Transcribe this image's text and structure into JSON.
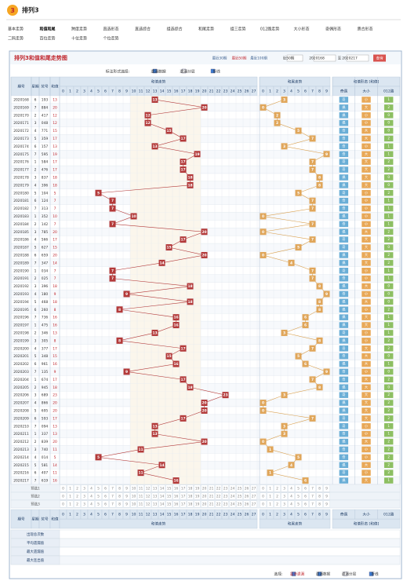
{
  "header": {
    "logo": "3",
    "title": "排列3"
  },
  "nav": [
    "基本走势",
    "和值和尾",
    "跨度走势",
    "直选形态",
    "直选综合",
    "组选综合",
    "和尾走势",
    "组三走势",
    "012路走势",
    "大小形态",
    "奇偶形态",
    "质合形态",
    "二码走势",
    "百位走势",
    "十位走势",
    "个位走势"
  ],
  "panel": {
    "title": "排列3和值和尾走势图",
    "periods": [
      "最近30期",
      "最近50期",
      "最近100期"
    ],
    "select": "近50期",
    "from": "2020168",
    "to": "至",
    "end": "2020217",
    "query": "查询"
  },
  "options_top": {
    "label": "标注形式选择:",
    "items": [
      "遗漏数据",
      "遗漏分层",
      "折线"
    ]
  },
  "table": {
    "headers": {
      "issue": "期号",
      "week": "星期",
      "number": "奖号",
      "sum": "和值",
      "sum_group": "和值走势",
      "tail_group": "和尾走势",
      "form_group": "和值形态 [和值]",
      "parity": "奇偶",
      "size": "大小",
      "route": "012路"
    },
    "sum_columns": [
      0,
      1,
      2,
      3,
      4,
      5,
      6,
      7,
      8,
      9,
      10,
      11,
      12,
      13,
      14,
      15,
      16,
      17,
      18,
      19,
      20,
      21,
      22,
      23,
      24,
      25,
      26,
      27
    ],
    "tail_columns": [
      0,
      1,
      2,
      3,
      4,
      5,
      6,
      7,
      8,
      9
    ],
    "rows": [
      [
        "2020168",
        6,
        "193",
        13,
        3,
        "奇",
        "小",
        1
      ],
      [
        "2020169",
        7,
        "884",
        20,
        0,
        "偶",
        "大",
        2
      ],
      [
        "2020170",
        2,
        "417",
        12,
        2,
        "偶",
        "小",
        0
      ],
      [
        "2020171",
        3,
        "048",
        12,
        2,
        "偶",
        "小",
        0
      ],
      [
        "2020172",
        4,
        "771",
        15,
        5,
        "奇",
        "大",
        0
      ],
      [
        "2020173",
        5,
        "359",
        17,
        7,
        "奇",
        "大",
        2
      ],
      [
        "2020174",
        6,
        "157",
        13,
        3,
        "奇",
        "小",
        1
      ],
      [
        "2020175",
        7,
        "595",
        19,
        9,
        "奇",
        "大",
        1
      ],
      [
        "2020176",
        1,
        "584",
        17,
        7,
        "奇",
        "大",
        2
      ],
      [
        "2020177",
        2,
        "476",
        17,
        7,
        "奇",
        "大",
        2
      ],
      [
        "2020178",
        3,
        "837",
        18,
        8,
        "偶",
        "大",
        0
      ],
      [
        "2020179",
        4,
        "396",
        18,
        8,
        "偶",
        "大",
        0
      ],
      [
        "2020180",
        5,
        "104",
        5,
        5,
        "奇",
        "小",
        2
      ],
      [
        "2020181",
        6,
        "124",
        7,
        7,
        "奇",
        "小",
        1
      ],
      [
        "2020182",
        7,
        "313",
        7,
        7,
        "奇",
        "小",
        1
      ],
      [
        "2020183",
        1,
        "352",
        10,
        0,
        "偶",
        "小",
        1
      ],
      [
        "2020184",
        2,
        "142",
        7,
        7,
        "奇",
        "小",
        1
      ],
      [
        "2020185",
        3,
        "785",
        20,
        0,
        "偶",
        "大",
        2
      ],
      [
        "2020186",
        4,
        "566",
        17,
        7,
        "奇",
        "大",
        2
      ],
      [
        "2020187",
        5,
        "627",
        15,
        5,
        "奇",
        "大",
        0
      ],
      [
        "2020188",
        6,
        "659",
        20,
        0,
        "偶",
        "大",
        2
      ],
      [
        "2020189",
        7,
        "347",
        14,
        4,
        "偶",
        "大",
        2
      ],
      [
        "2020190",
        1,
        "034",
        7,
        7,
        "奇",
        "小",
        1
      ],
      [
        "2020191",
        2,
        "025",
        7,
        7,
        "奇",
        "小",
        1
      ],
      [
        "2020192",
        3,
        "396",
        18,
        8,
        "偶",
        "大",
        0
      ],
      [
        "2020193",
        4,
        "180",
        9,
        9,
        "奇",
        "小",
        0
      ],
      [
        "2020194",
        5,
        "468",
        18,
        8,
        "偶",
        "大",
        0
      ],
      [
        "2020195",
        6,
        "260",
        8,
        8,
        "偶",
        "小",
        2
      ],
      [
        "2020196",
        7,
        "736",
        16,
        6,
        "偶",
        "大",
        1
      ],
      [
        "2020197",
        1,
        "475",
        16,
        6,
        "偶",
        "大",
        1
      ],
      [
        "2020198",
        2,
        "346",
        13,
        3,
        "奇",
        "小",
        1
      ],
      [
        "2020199",
        3,
        "305",
        8,
        8,
        "偶",
        "小",
        2
      ],
      [
        "2020200",
        4,
        "377",
        17,
        7,
        "奇",
        "大",
        2
      ],
      [
        "2020201",
        5,
        "348",
        15,
        5,
        "奇",
        "大",
        0
      ],
      [
        "2020202",
        6,
        "961",
        16,
        6,
        "偶",
        "大",
        1
      ],
      [
        "2020203",
        7,
        "135",
        9,
        9,
        "奇",
        "小",
        0
      ],
      [
        "2020204",
        1,
        "674",
        17,
        7,
        "奇",
        "大",
        2
      ],
      [
        "2020205",
        2,
        "945",
        18,
        8,
        "偶",
        "大",
        0
      ],
      [
        "2020206",
        3,
        "689",
        23,
        3,
        "奇",
        "大",
        2
      ],
      [
        "2020207",
        4,
        "866",
        20,
        0,
        "偶",
        "大",
        2
      ],
      [
        "2020208",
        5,
        "695",
        20,
        0,
        "偶",
        "大",
        2
      ],
      [
        "2020209",
        6,
        "593",
        17,
        7,
        "奇",
        "大",
        2
      ],
      [
        "2020210",
        7,
        "094",
        13,
        3,
        "奇",
        "小",
        1
      ],
      [
        "2020211",
        1,
        "337",
        13,
        3,
        "奇",
        "小",
        1
      ],
      [
        "2020212",
        2,
        "839",
        20,
        0,
        "偶",
        "大",
        2
      ],
      [
        "2020213",
        3,
        "740",
        11,
        1,
        "奇",
        "小",
        2
      ],
      [
        "2020214",
        4,
        "014",
        5,
        5,
        "奇",
        "小",
        2
      ],
      [
        "2020215",
        5,
        "581",
        14,
        4,
        "偶",
        "大",
        2
      ],
      [
        "2020216",
        6,
        "407",
        11,
        1,
        "奇",
        "小",
        2
      ],
      [
        "2020217",
        7,
        "619",
        16,
        6,
        "偶",
        "大",
        1
      ]
    ],
    "preselect": [
      "预选1",
      "预选2",
      "预选3"
    ],
    "stats": [
      "出现总次数",
      "平均遗漏值",
      "最大遗漏值",
      "最大连出值"
    ]
  },
  "footer": {
    "label": "选择:",
    "items": [
      "显示遗漏",
      "遗漏数据",
      "遗漏分层",
      "折线"
    ]
  }
}
